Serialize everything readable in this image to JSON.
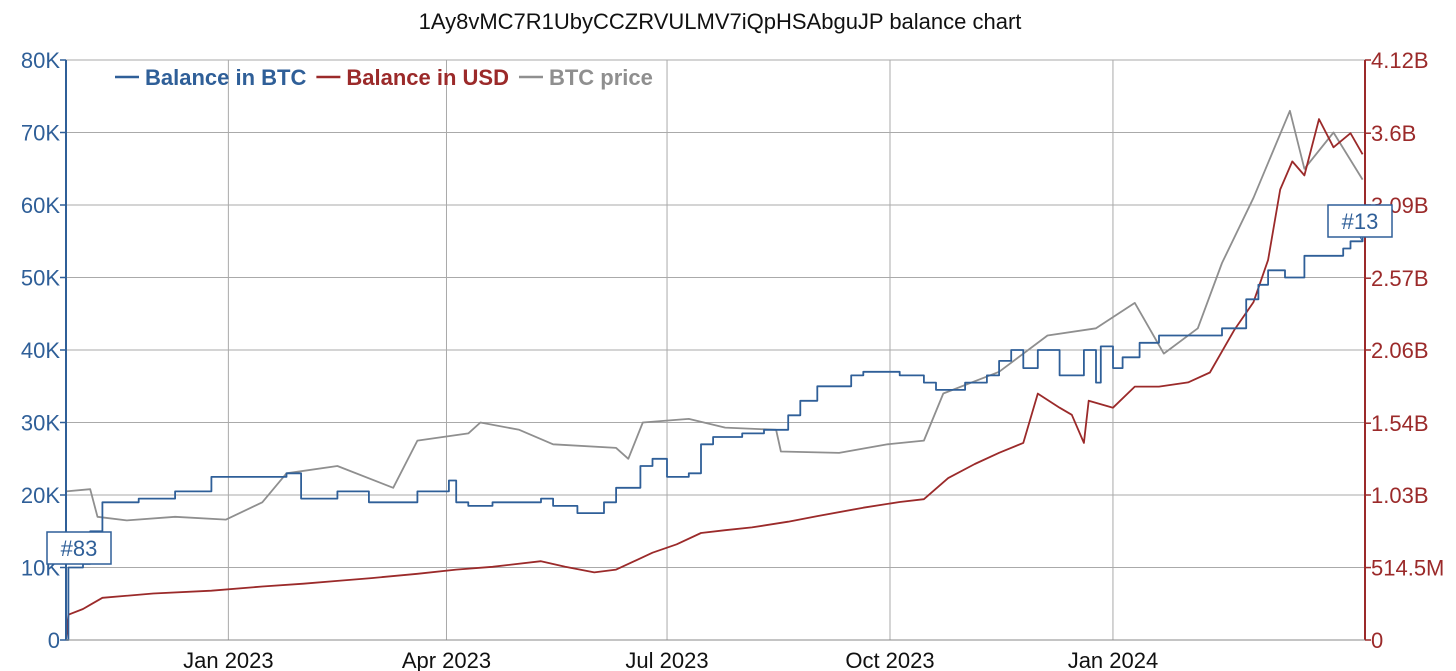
{
  "chart_data": {
    "type": "line",
    "title": "1Ay8vMC7R1UbyCCZRVULMV7iQpHSAbguJP balance chart",
    "colors": {
      "btc": "#2f5f98",
      "usd": "#9b2a2a",
      "price": "#8f8f8f",
      "grid": "#aaaaaa"
    },
    "x_range": [
      "2022-10-26",
      "2024-04-14"
    ],
    "x_ticks": [
      {
        "date": "2023-01-01",
        "label": "Jan 2023"
      },
      {
        "date": "2023-04-01",
        "label": "Apr 2023"
      },
      {
        "date": "2023-07-01",
        "label": "Jul 2023"
      },
      {
        "date": "2023-10-01",
        "label": "Oct 2023"
      },
      {
        "date": "2024-01-01",
        "label": "Jan 2024"
      }
    ],
    "y_left": {
      "range": [
        0,
        80000
      ],
      "ticks": [
        0,
        10000,
        20000,
        30000,
        40000,
        50000,
        60000,
        70000,
        80000
      ],
      "labels": [
        "0",
        "10K",
        "20K",
        "30K",
        "40K",
        "50K",
        "60K",
        "70K",
        "80K"
      ]
    },
    "y_right": {
      "range": [
        0,
        4120000000
      ],
      "ticks": [
        0,
        514500000,
        1030000000,
        1540000000,
        2060000000,
        2570000000,
        3090000000,
        3600000000,
        4120000000
      ],
      "labels": [
        "0",
        "514.5M",
        "1.03B",
        "1.54B",
        "2.06B",
        "2.57B",
        "3.09B",
        "3.6B",
        "4.12B"
      ]
    },
    "legend": {
      "placement": "top-left",
      "entries": [
        "Balance in BTC",
        "Balance in USD",
        "BTC price"
      ]
    },
    "annotations": [
      {
        "label": "#83",
        "series": "Balance in BTC",
        "date": "2022-10-28",
        "value": 10500
      },
      {
        "label": "#13",
        "series": "Balance in BTC",
        "date": "2024-04-13",
        "value": 55000
      }
    ],
    "series": [
      {
        "name": "Balance in BTC",
        "axis": "left",
        "points": [
          [
            "2022-10-26",
            0
          ],
          [
            "2022-10-27",
            10000
          ],
          [
            "2022-11-02",
            10500
          ],
          [
            "2022-11-05",
            15000
          ],
          [
            "2022-11-10",
            19000
          ],
          [
            "2022-11-25",
            19500
          ],
          [
            "2022-12-10",
            20500
          ],
          [
            "2022-12-25",
            22500
          ],
          [
            "2023-01-25",
            23000
          ],
          [
            "2023-01-31",
            19500
          ],
          [
            "2023-02-15",
            20500
          ],
          [
            "2023-02-28",
            19000
          ],
          [
            "2023-03-20",
            20500
          ],
          [
            "2023-04-02",
            22000
          ],
          [
            "2023-04-05",
            19000
          ],
          [
            "2023-04-10",
            18500
          ],
          [
            "2023-04-20",
            19000
          ],
          [
            "2023-05-10",
            19500
          ],
          [
            "2023-05-15",
            18500
          ],
          [
            "2023-05-25",
            17500
          ],
          [
            "2023-06-05",
            19000
          ],
          [
            "2023-06-10",
            21000
          ],
          [
            "2023-06-20",
            24000
          ],
          [
            "2023-06-25",
            25000
          ],
          [
            "2023-07-01",
            22500
          ],
          [
            "2023-07-10",
            23000
          ],
          [
            "2023-07-15",
            27000
          ],
          [
            "2023-07-20",
            28000
          ],
          [
            "2023-08-01",
            28500
          ],
          [
            "2023-08-10",
            29000
          ],
          [
            "2023-08-20",
            31000
          ],
          [
            "2023-08-25",
            33000
          ],
          [
            "2023-09-01",
            35000
          ],
          [
            "2023-09-15",
            36500
          ],
          [
            "2023-09-20",
            37000
          ],
          [
            "2023-10-05",
            36500
          ],
          [
            "2023-10-15",
            35500
          ],
          [
            "2023-10-20",
            34500
          ],
          [
            "2023-11-01",
            35500
          ],
          [
            "2023-11-10",
            36500
          ],
          [
            "2023-11-15",
            38500
          ],
          [
            "2023-11-20",
            40000
          ],
          [
            "2023-11-25",
            37500
          ],
          [
            "2023-12-01",
            40000
          ],
          [
            "2023-12-10",
            36500
          ],
          [
            "2023-12-20",
            40000
          ],
          [
            "2023-12-25",
            35500
          ],
          [
            "2023-12-27",
            40500
          ],
          [
            "2024-01-01",
            37500
          ],
          [
            "2024-01-05",
            39000
          ],
          [
            "2024-01-12",
            41000
          ],
          [
            "2024-01-20",
            42000
          ],
          [
            "2024-02-05",
            42000
          ],
          [
            "2024-02-15",
            43000
          ],
          [
            "2024-02-25",
            47000
          ],
          [
            "2024-03-01",
            49000
          ],
          [
            "2024-03-05",
            51000
          ],
          [
            "2024-03-12",
            50000
          ],
          [
            "2024-03-20",
            53000
          ],
          [
            "2024-04-05",
            54000
          ],
          [
            "2024-04-08",
            55000
          ],
          [
            "2024-04-13",
            55500
          ]
        ]
      },
      {
        "name": "Balance in USD",
        "axis": "right",
        "points": [
          [
            "2022-10-26",
            0
          ],
          [
            "2022-10-27",
            180000000
          ],
          [
            "2022-11-02",
            220000000
          ],
          [
            "2022-11-05",
            250000000
          ],
          [
            "2022-11-10",
            300000000
          ],
          [
            "2022-12-01",
            330000000
          ],
          [
            "2022-12-25",
            350000000
          ],
          [
            "2023-01-15",
            380000000
          ],
          [
            "2023-02-01",
            400000000
          ],
          [
            "2023-02-15",
            420000000
          ],
          [
            "2023-03-01",
            440000000
          ],
          [
            "2023-03-20",
            470000000
          ],
          [
            "2023-04-05",
            500000000
          ],
          [
            "2023-04-20",
            520000000
          ],
          [
            "2023-05-10",
            560000000
          ],
          [
            "2023-05-20",
            520000000
          ],
          [
            "2023-06-01",
            480000000
          ],
          [
            "2023-06-10",
            500000000
          ],
          [
            "2023-06-25",
            620000000
          ],
          [
            "2023-07-05",
            680000000
          ],
          [
            "2023-07-15",
            760000000
          ],
          [
            "2023-07-25",
            780000000
          ],
          [
            "2023-08-05",
            800000000
          ],
          [
            "2023-08-20",
            840000000
          ],
          [
            "2023-09-01",
            880000000
          ],
          [
            "2023-09-20",
            940000000
          ],
          [
            "2023-10-05",
            980000000
          ],
          [
            "2023-10-15",
            1000000000
          ],
          [
            "2023-10-25",
            1150000000
          ],
          [
            "2023-11-05",
            1250000000
          ],
          [
            "2023-11-15",
            1330000000
          ],
          [
            "2023-11-25",
            1400000000
          ],
          [
            "2023-12-01",
            1750000000
          ],
          [
            "2023-12-10",
            1650000000
          ],
          [
            "2023-12-15",
            1600000000
          ],
          [
            "2023-12-20",
            1400000000
          ],
          [
            "2023-12-22",
            1700000000
          ],
          [
            "2024-01-01",
            1650000000
          ],
          [
            "2024-01-10",
            1800000000
          ],
          [
            "2024-01-20",
            1800000000
          ],
          [
            "2024-02-01",
            1830000000
          ],
          [
            "2024-02-10",
            1900000000
          ],
          [
            "2024-02-20",
            2200000000
          ],
          [
            "2024-02-28",
            2400000000
          ],
          [
            "2024-03-05",
            2700000000
          ],
          [
            "2024-03-10",
            3200000000
          ],
          [
            "2024-03-15",
            3400000000
          ],
          [
            "2024-03-20",
            3300000000
          ],
          [
            "2024-03-26",
            3700000000
          ],
          [
            "2024-04-01",
            3500000000
          ],
          [
            "2024-04-08",
            3600000000
          ],
          [
            "2024-04-13",
            3450000000
          ]
        ]
      },
      {
        "name": "BTC price",
        "axis": "left",
        "points": [
          [
            "2022-10-26",
            20500
          ],
          [
            "2022-11-05",
            20800
          ],
          [
            "2022-11-08",
            17000
          ],
          [
            "2022-11-20",
            16500
          ],
          [
            "2022-12-10",
            17000
          ],
          [
            "2022-12-31",
            16600
          ],
          [
            "2023-01-15",
            19000
          ],
          [
            "2023-01-25",
            23000
          ],
          [
            "2023-02-15",
            24000
          ],
          [
            "2023-03-10",
            21000
          ],
          [
            "2023-03-20",
            27500
          ],
          [
            "2023-04-10",
            28500
          ],
          [
            "2023-04-15",
            30000
          ],
          [
            "2023-05-01",
            29000
          ],
          [
            "2023-05-15",
            27000
          ],
          [
            "2023-06-10",
            26500
          ],
          [
            "2023-06-15",
            25000
          ],
          [
            "2023-06-21",
            30000
          ],
          [
            "2023-07-10",
            30500
          ],
          [
            "2023-07-25",
            29300
          ],
          [
            "2023-08-15",
            29000
          ],
          [
            "2023-08-17",
            26000
          ],
          [
            "2023-09-10",
            25800
          ],
          [
            "2023-09-30",
            27000
          ],
          [
            "2023-10-15",
            27500
          ],
          [
            "2023-10-23",
            34000
          ],
          [
            "2023-11-15",
            37000
          ],
          [
            "2023-12-05",
            42000
          ],
          [
            "2023-12-25",
            43000
          ],
          [
            "2024-01-10",
            46500
          ],
          [
            "2024-01-22",
            39500
          ],
          [
            "2024-02-05",
            43000
          ],
          [
            "2024-02-15",
            52000
          ],
          [
            "2024-02-28",
            61000
          ],
          [
            "2024-03-14",
            73000
          ],
          [
            "2024-03-20",
            65000
          ],
          [
            "2024-04-01",
            70000
          ],
          [
            "2024-04-13",
            63500
          ]
        ]
      }
    ]
  }
}
